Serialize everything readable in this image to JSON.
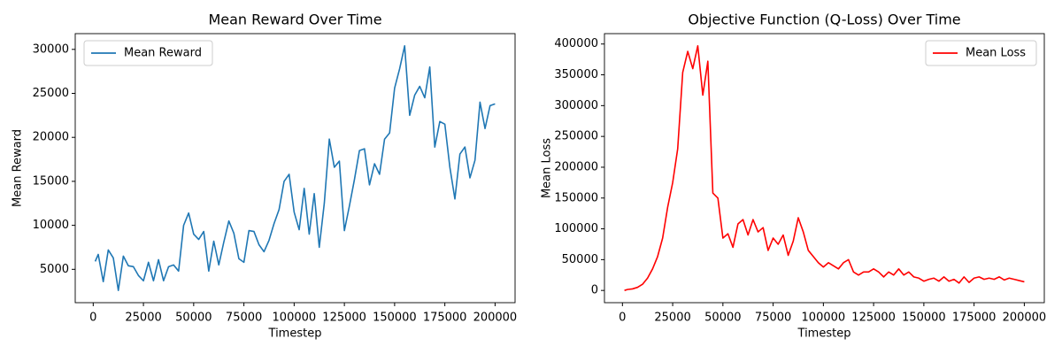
{
  "chart_data": [
    {
      "type": "line",
      "title": "Mean Reward Over Time",
      "x_label": "Timestep",
      "y_label": "Mean Reward",
      "legend": "upper left",
      "grid": false,
      "xlim": [
        -8950,
        209950
      ],
      "ylim": [
        1210,
        31790
      ],
      "xticks": [
        0,
        25000,
        50000,
        75000,
        100000,
        125000,
        150000,
        175000,
        200000
      ],
      "yticks": [
        5000,
        10000,
        15000,
        20000,
        25000,
        30000
      ],
      "x": [
        1000,
        2500,
        5000,
        7500,
        10000,
        12500,
        15000,
        17500,
        20000,
        22500,
        25000,
        27500,
        30000,
        32500,
        35000,
        37500,
        40000,
        42500,
        45000,
        47500,
        50000,
        52500,
        55000,
        57500,
        60000,
        62500,
        65000,
        67500,
        70000,
        72500,
        75000,
        77500,
        80000,
        82500,
        85000,
        87500,
        90000,
        92500,
        95000,
        97500,
        100000,
        102500,
        105000,
        107500,
        110000,
        112500,
        115000,
        117500,
        120000,
        122500,
        125000,
        127500,
        130000,
        132500,
        135000,
        137500,
        140000,
        142500,
        145000,
        147500,
        150000,
        152500,
        155000,
        157500,
        160000,
        162500,
        165000,
        167500,
        170000,
        172500,
        175000,
        177500,
        180000,
        182500,
        185000,
        187500,
        190000,
        192500,
        195000,
        197500,
        200000
      ],
      "series": [
        {
          "name": "Mean Reward",
          "color": "#1f77b4",
          "values": [
            5900,
            6700,
            3600,
            7200,
            6300,
            2600,
            6500,
            5400,
            5300,
            4300,
            3700,
            5800,
            3700,
            6100,
            3700,
            5300,
            5500,
            4800,
            10000,
            11400,
            9000,
            8400,
            9300,
            4800,
            8200,
            5500,
            8100,
            10500,
            9100,
            6200,
            5800,
            9400,
            9300,
            7800,
            7000,
            8300,
            10200,
            11800,
            15000,
            15800,
            11500,
            9500,
            14200,
            9000,
            13600,
            7500,
            12500,
            19800,
            16600,
            17300,
            9400,
            12200,
            15200,
            18500,
            18700,
            14600,
            17000,
            15800,
            19800,
            20500,
            25600,
            27800,
            30400,
            22500,
            24800,
            25800,
            24500,
            28000,
            18900,
            21800,
            21500,
            16600,
            13000,
            18100,
            18900,
            15400,
            17400,
            24000,
            21000,
            23600,
            23800
          ]
        }
      ]
    },
    {
      "type": "line",
      "title": "Objective Function (Q-Loss) Over Time",
      "x_label": "Timestep",
      "y_label": "Mean Loss",
      "legend": "upper right",
      "grid": false,
      "xlim": [
        -8950,
        209950
      ],
      "ylim": [
        -19850,
        416850
      ],
      "xticks": [
        0,
        25000,
        50000,
        75000,
        100000,
        125000,
        150000,
        175000,
        200000
      ],
      "yticks": [
        0,
        50000,
        100000,
        150000,
        200000,
        250000,
        300000,
        350000,
        400000
      ],
      "x": [
        1000,
        2500,
        5000,
        7500,
        10000,
        12500,
        15000,
        17500,
        20000,
        22500,
        25000,
        27500,
        30000,
        32500,
        35000,
        37500,
        40000,
        42500,
        45000,
        47500,
        50000,
        52500,
        55000,
        57500,
        60000,
        62500,
        65000,
        67500,
        70000,
        72500,
        75000,
        77500,
        80000,
        82500,
        85000,
        87500,
        90000,
        92500,
        95000,
        97500,
        100000,
        102500,
        105000,
        107500,
        110000,
        112500,
        115000,
        117500,
        120000,
        122500,
        125000,
        127500,
        130000,
        132500,
        135000,
        137500,
        140000,
        142500,
        145000,
        147500,
        150000,
        152500,
        155000,
        157500,
        160000,
        162500,
        165000,
        167500,
        170000,
        172500,
        175000,
        177500,
        180000,
        182500,
        185000,
        187500,
        190000,
        192500,
        195000,
        197500,
        200000
      ],
      "series": [
        {
          "name": "Mean Loss",
          "color": "#ff0000",
          "values": [
            0,
            1500,
            2500,
            5000,
            10000,
            20000,
            35000,
            55000,
            85000,
            135000,
            175000,
            230000,
            354000,
            388000,
            360000,
            397000,
            317000,
            372000,
            158000,
            150000,
            85000,
            92000,
            70000,
            108000,
            115000,
            90000,
            115000,
            95000,
            102000,
            65000,
            85000,
            75000,
            90000,
            57000,
            80000,
            118000,
            95000,
            65000,
            55000,
            45000,
            38000,
            45000,
            40000,
            35000,
            45000,
            50000,
            30000,
            25000,
            30000,
            30000,
            35000,
            30000,
            22000,
            30000,
            25000,
            35000,
            25000,
            30000,
            22000,
            20000,
            15000,
            18000,
            20000,
            15000,
            22000,
            15000,
            18000,
            12000,
            22000,
            13000,
            20000,
            22000,
            18000,
            20000,
            18000,
            22000,
            17000,
            20000,
            18000,
            16000,
            14000
          ]
        }
      ]
    }
  ]
}
